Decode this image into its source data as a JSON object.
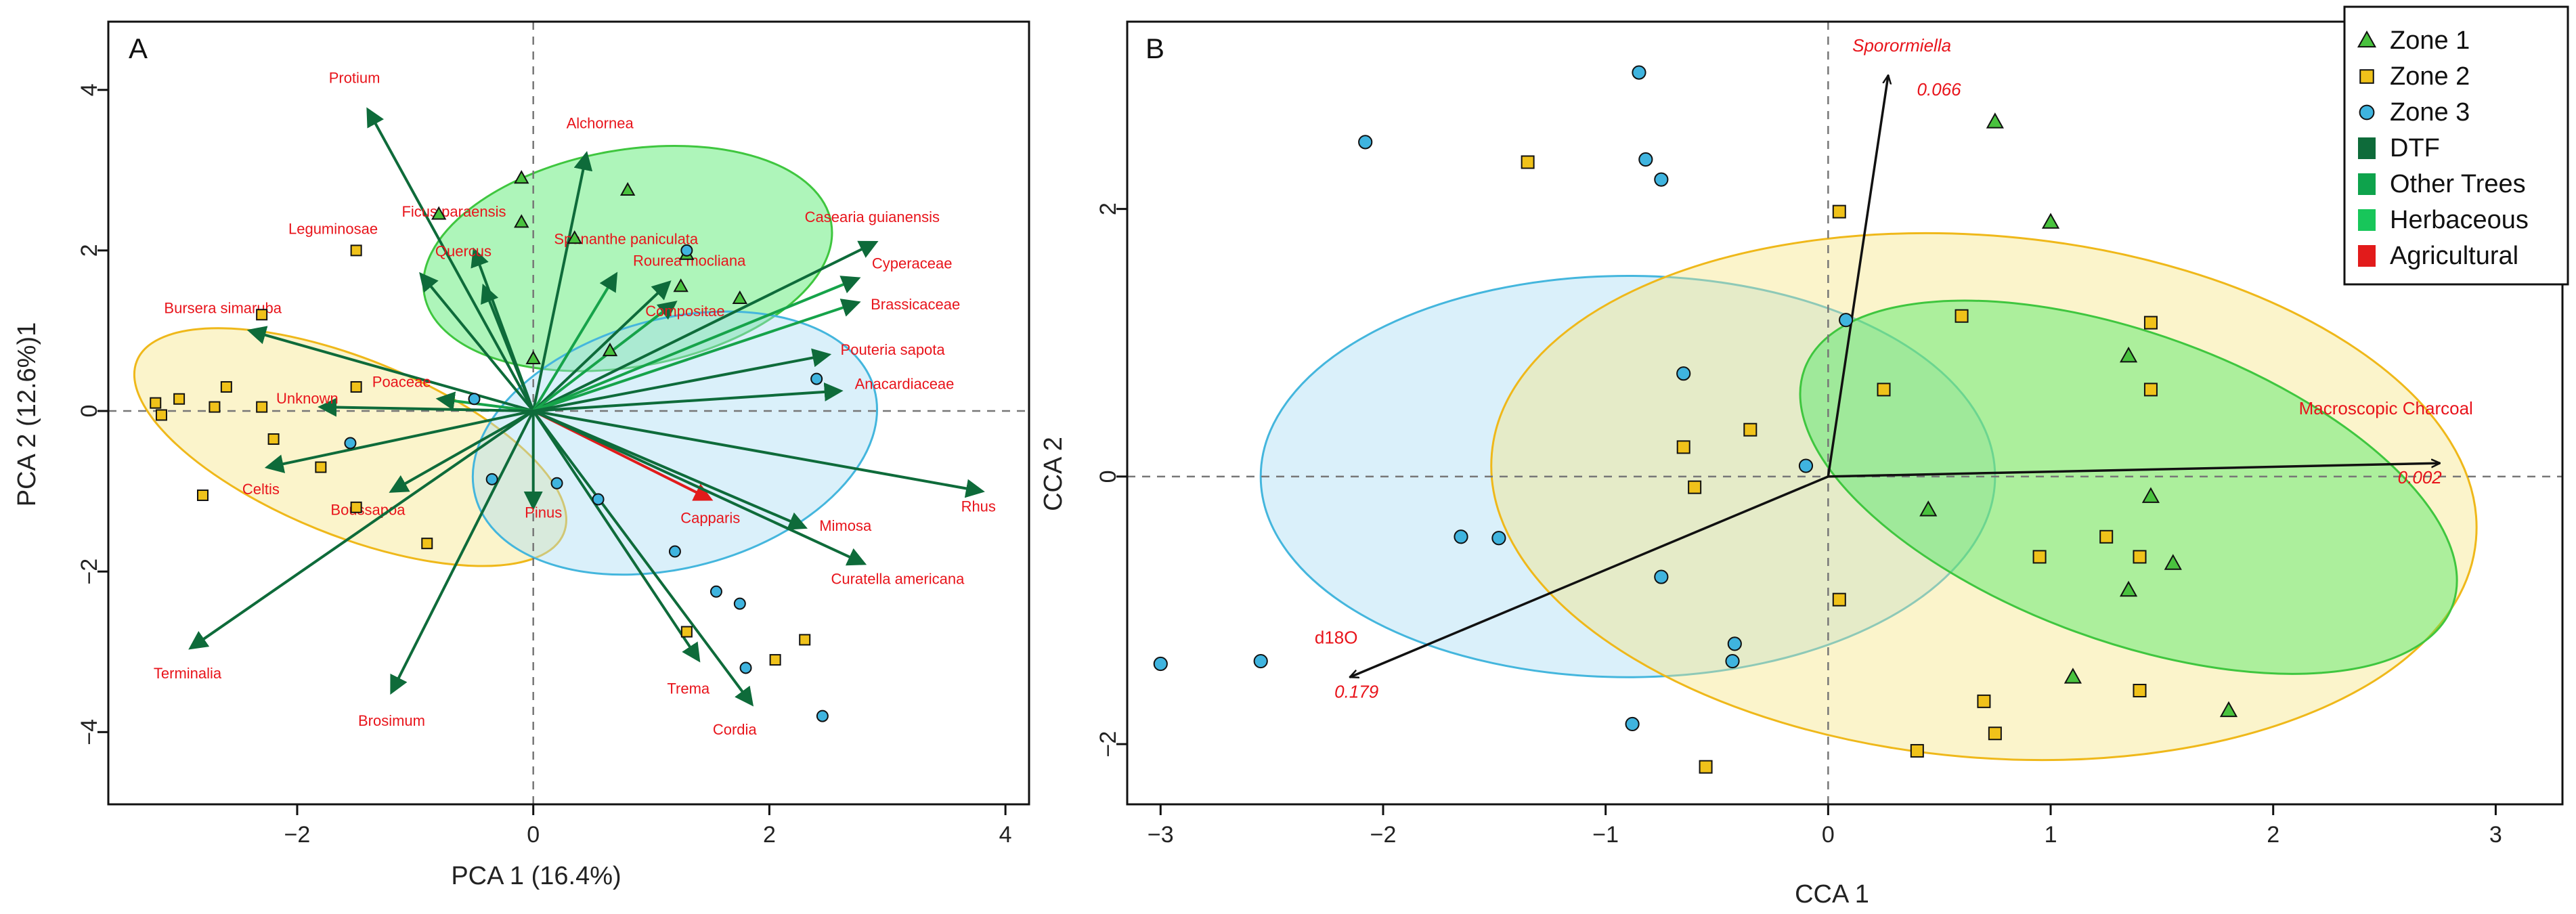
{
  "chart_data": [
    {
      "type": "scatter",
      "panel_label": "A",
      "xlabel": "PCA 1 (16.4%)",
      "ylabel": "PCA 2 (12.6%)1",
      "xlim": [
        -3.6,
        4.2
      ],
      "ylim": [
        -4.9,
        4.85
      ],
      "xticks": [
        -2,
        0,
        2,
        4
      ],
      "yticks": [
        -4,
        -2,
        0,
        2,
        4
      ],
      "reference_lines": {
        "x": 0,
        "y": 0
      },
      "colors": {
        "zone1": "#49c23e",
        "zone2": "#f0c21a",
        "zone3": "#3fb4df",
        "arrow_tree": "#0e6b3a",
        "arrow_agri": "#e21b1b",
        "label": "#e8141b"
      },
      "ellipses": [
        {
          "zone": "Zone 1",
          "center": [
            0.8,
            1.9
          ],
          "semi_axes": [
            1.75,
            1.35
          ],
          "angle": 10,
          "fill": "#3ee85a",
          "stroke": "#3fc63f"
        },
        {
          "zone": "Zone 2",
          "center": [
            -1.55,
            -0.45
          ],
          "semi_axes": [
            1.95,
            1.1
          ],
          "angle": -22,
          "fill": "#f6e482",
          "stroke": "#efb81a"
        },
        {
          "zone": "Zone 3",
          "center": [
            1.2,
            -0.4
          ],
          "semi_axes": [
            1.75,
            1.55
          ],
          "angle": 15,
          "fill": "#a8dcf3",
          "stroke": "#44b6dd"
        }
      ],
      "vectors": [
        {
          "name": "Protium",
          "x": -1.4,
          "y": 3.75,
          "group": "tree"
        },
        {
          "name": "Alchornea",
          "x": 0.45,
          "y": 3.2,
          "group": "tree"
        },
        {
          "name": "Casearia guianensis",
          "x": 2.9,
          "y": 2.1,
          "group": "tree"
        },
        {
          "name": "Leguminosae",
          "x": -0.95,
          "y": 1.7,
          "group": "tree"
        },
        {
          "name": "Ficus paraensis",
          "x": -0.5,
          "y": 2.0,
          "group": "tree"
        },
        {
          "name": "Quercus",
          "x": -0.42,
          "y": 1.55,
          "group": "tree"
        },
        {
          "name": "Spananthe paniculata",
          "x": 0.7,
          "y": 1.7,
          "group": "herb"
        },
        {
          "name": "Rourea mocliana",
          "x": 1.15,
          "y": 1.6,
          "group": "tree"
        },
        {
          "name": "Cyperaceae",
          "x": 2.75,
          "y": 1.65,
          "group": "herb"
        },
        {
          "name": "Brassicaceae",
          "x": 2.75,
          "y": 1.35,
          "group": "herb"
        },
        {
          "name": "Compositae",
          "x": 1.2,
          "y": 1.35,
          "group": "herb"
        },
        {
          "name": "Bursera simaruba",
          "x": -2.4,
          "y": 1.0,
          "group": "tree"
        },
        {
          "name": "Pouteria sapota",
          "x": 2.5,
          "y": 0.7,
          "group": "tree"
        },
        {
          "name": "Poaceae",
          "x": -0.8,
          "y": 0.15,
          "group": "herb"
        },
        {
          "name": "Unknown",
          "x": -1.8,
          "y": 0.05,
          "group": "tree"
        },
        {
          "name": "Anacardiaceae",
          "x": 2.6,
          "y": 0.25,
          "group": "tree"
        },
        {
          "name": "Celtis",
          "x": -2.25,
          "y": -0.7,
          "group": "tree"
        },
        {
          "name": "Boussapoa",
          "x": -1.2,
          "y": -1.0,
          "group": "tree"
        },
        {
          "name": "Pinus",
          "x": 0.0,
          "y": -1.2,
          "group": "tree"
        },
        {
          "name": "Capparis",
          "x": 1.5,
          "y": -1.1,
          "group": "agri"
        },
        {
          "name": "Mimosa",
          "x": 2.3,
          "y": -1.45,
          "group": "tree"
        },
        {
          "name": "Rhus",
          "x": 3.8,
          "y": -1.0,
          "group": "tree"
        },
        {
          "name": "Curatella americana",
          "x": 2.8,
          "y": -1.9,
          "group": "tree"
        },
        {
          "name": "Terminalia",
          "x": -2.9,
          "y": -2.95,
          "group": "tree"
        },
        {
          "name": "Brosimum",
          "x": -1.2,
          "y": -3.5,
          "group": "tree"
        },
        {
          "name": "Trema",
          "x": 1.4,
          "y": -3.1,
          "group": "tree"
        },
        {
          "name": "Cordia",
          "x": 1.85,
          "y": -3.65,
          "group": "tree"
        }
      ],
      "points": [
        {
          "zone": "Zone 1",
          "x": -0.8,
          "y": 2.45
        },
        {
          "zone": "Zone 1",
          "x": -0.1,
          "y": 2.9
        },
        {
          "zone": "Zone 1",
          "x": -0.1,
          "y": 2.35
        },
        {
          "zone": "Zone 1",
          "x": 0.35,
          "y": 2.15
        },
        {
          "zone": "Zone 1",
          "x": 0.8,
          "y": 2.75
        },
        {
          "zone": "Zone 1",
          "x": 1.3,
          "y": 1.95
        },
        {
          "zone": "Zone 1",
          "x": 1.75,
          "y": 1.4
        },
        {
          "zone": "Zone 1",
          "x": 0.0,
          "y": 0.65
        },
        {
          "zone": "Zone 1",
          "x": 0.65,
          "y": 0.75
        },
        {
          "zone": "Zone 1",
          "x": 1.25,
          "y": 1.55
        },
        {
          "zone": "Zone 2",
          "x": -1.5,
          "y": 2.0
        },
        {
          "zone": "Zone 2",
          "x": -2.3,
          "y": 1.2
        },
        {
          "zone": "Zone 2",
          "x": -3.2,
          "y": 0.1
        },
        {
          "zone": "Zone 2",
          "x": -3.15,
          "y": -0.05
        },
        {
          "zone": "Zone 2",
          "x": -3.0,
          "y": 0.15
        },
        {
          "zone": "Zone 2",
          "x": -2.7,
          "y": 0.05
        },
        {
          "zone": "Zone 2",
          "x": -2.6,
          "y": 0.3
        },
        {
          "zone": "Zone 2",
          "x": -2.3,
          "y": 0.05
        },
        {
          "zone": "Zone 2",
          "x": -2.2,
          "y": -0.35
        },
        {
          "zone": "Zone 2",
          "x": -1.8,
          "y": -0.7
        },
        {
          "zone": "Zone 2",
          "x": -1.5,
          "y": 0.3
        },
        {
          "zone": "Zone 2",
          "x": -1.5,
          "y": -1.2
        },
        {
          "zone": "Zone 2",
          "x": -2.8,
          "y": -1.05
        },
        {
          "zone": "Zone 2",
          "x": -0.9,
          "y": -1.65
        },
        {
          "zone": "Zone 2",
          "x": 1.3,
          "y": -2.75
        },
        {
          "zone": "Zone 2",
          "x": 2.05,
          "y": -3.1
        },
        {
          "zone": "Zone 2",
          "x": 2.3,
          "y": -2.85
        },
        {
          "zone": "Zone 3",
          "x": 1.3,
          "y": 2.0
        },
        {
          "zone": "Zone 3",
          "x": 2.4,
          "y": 0.4
        },
        {
          "zone": "Zone 3",
          "x": -1.55,
          "y": -0.4
        },
        {
          "zone": "Zone 3",
          "x": -0.5,
          "y": 0.15
        },
        {
          "zone": "Zone 3",
          "x": -0.35,
          "y": -0.85
        },
        {
          "zone": "Zone 3",
          "x": 0.2,
          "y": -0.9
        },
        {
          "zone": "Zone 3",
          "x": 0.55,
          "y": -1.1
        },
        {
          "zone": "Zone 3",
          "x": 1.2,
          "y": -1.75
        },
        {
          "zone": "Zone 3",
          "x": 1.55,
          "y": -2.25
        },
        {
          "zone": "Zone 3",
          "x": 1.75,
          "y": -2.4
        },
        {
          "zone": "Zone 3",
          "x": 1.8,
          "y": -3.2
        },
        {
          "zone": "Zone 3",
          "x": 2.45,
          "y": -3.8
        }
      ]
    },
    {
      "type": "scatter",
      "panel_label": "B",
      "xlabel": "CCA 1",
      "ylabel": "CCA 2",
      "xlim": [
        -3.15,
        3.3
      ],
      "ylim": [
        -2.45,
        3.4
      ],
      "xticks": [
        -3,
        -2,
        -1,
        0,
        1,
        2,
        3
      ],
      "yticks": [
        -2,
        0,
        2
      ],
      "reference_lines": {
        "x": 0,
        "y": 0
      },
      "ellipses": [
        {
          "zone": "Zone 3",
          "center": [
            -0.9,
            0.0
          ],
          "semi_axes": [
            1.65,
            1.5
          ],
          "angle": 0,
          "fill": "#a8dcf3",
          "stroke": "#44b6dd"
        },
        {
          "zone": "Zone 2",
          "center": [
            0.7,
            -0.15
          ],
          "semi_axes": [
            2.22,
            1.95
          ],
          "angle": -5,
          "fill": "#f6e482",
          "stroke": "#efb81a"
        },
        {
          "zone": "Zone 1",
          "center": [
            1.35,
            -0.08
          ],
          "semi_axes": [
            1.55,
            1.15
          ],
          "angle": -20,
          "fill": "#3ee85a",
          "stroke": "#3fc63f"
        }
      ],
      "vectors": [
        {
          "name": "Sporormiella",
          "value": "0.066",
          "x": 0.27,
          "y": 3.0
        },
        {
          "name": "Macroscopic Charcoal",
          "value": "0.002",
          "x": 2.75,
          "y": 0.1
        },
        {
          "name": "d18O",
          "value": "0.179",
          "x": -2.15,
          "y": -1.5
        }
      ],
      "points": [
        {
          "zone": "Zone 1",
          "x": 0.75,
          "y": 2.65
        },
        {
          "zone": "Zone 1",
          "x": 1.0,
          "y": 1.9
        },
        {
          "zone": "Zone 1",
          "x": 1.35,
          "y": 0.9
        },
        {
          "zone": "Zone 1",
          "x": 1.45,
          "y": -0.15
        },
        {
          "zone": "Zone 1",
          "x": 0.45,
          "y": -0.25
        },
        {
          "zone": "Zone 1",
          "x": 1.55,
          "y": -0.65
        },
        {
          "zone": "Zone 1",
          "x": 1.35,
          "y": -0.85
        },
        {
          "zone": "Zone 1",
          "x": 1.1,
          "y": -1.5
        },
        {
          "zone": "Zone 1",
          "x": 1.8,
          "y": -1.75
        },
        {
          "zone": "Zone 2",
          "x": -1.35,
          "y": 2.35
        },
        {
          "zone": "Zone 2",
          "x": 0.05,
          "y": 1.98
        },
        {
          "zone": "Zone 2",
          "x": 0.6,
          "y": 1.2
        },
        {
          "zone": "Zone 2",
          "x": 1.45,
          "y": 1.15
        },
        {
          "zone": "Zone 2",
          "x": 0.25,
          "y": 0.65
        },
        {
          "zone": "Zone 2",
          "x": 1.45,
          "y": 0.65
        },
        {
          "zone": "Zone 2",
          "x": -0.35,
          "y": 0.35
        },
        {
          "zone": "Zone 2",
          "x": -0.65,
          "y": 0.22
        },
        {
          "zone": "Zone 2",
          "x": -0.6,
          "y": -0.08
        },
        {
          "zone": "Zone 2",
          "x": 0.95,
          "y": -0.6
        },
        {
          "zone": "Zone 2",
          "x": 1.25,
          "y": -0.45
        },
        {
          "zone": "Zone 2",
          "x": 1.4,
          "y": -0.6
        },
        {
          "zone": "Zone 2",
          "x": 0.05,
          "y": -0.92
        },
        {
          "zone": "Zone 2",
          "x": 1.4,
          "y": -1.6
        },
        {
          "zone": "Zone 2",
          "x": 0.7,
          "y": -1.68
        },
        {
          "zone": "Zone 2",
          "x": 0.75,
          "y": -1.92
        },
        {
          "zone": "Zone 2",
          "x": 0.4,
          "y": -2.05
        },
        {
          "zone": "Zone 2",
          "x": -0.55,
          "y": -2.17
        },
        {
          "zone": "Zone 3",
          "x": -0.85,
          "y": 3.02
        },
        {
          "zone": "Zone 3",
          "x": -2.08,
          "y": 2.5
        },
        {
          "zone": "Zone 3",
          "x": -0.82,
          "y": 2.37
        },
        {
          "zone": "Zone 3",
          "x": -0.75,
          "y": 2.22
        },
        {
          "zone": "Zone 3",
          "x": 0.08,
          "y": 1.17
        },
        {
          "zone": "Zone 3",
          "x": -0.65,
          "y": 0.77
        },
        {
          "zone": "Zone 3",
          "x": -0.1,
          "y": 0.08
        },
        {
          "zone": "Zone 3",
          "x": -1.65,
          "y": -0.45
        },
        {
          "zone": "Zone 3",
          "x": -1.48,
          "y": -0.46
        },
        {
          "zone": "Zone 3",
          "x": -0.75,
          "y": -0.75
        },
        {
          "zone": "Zone 3",
          "x": -0.42,
          "y": -1.25
        },
        {
          "zone": "Zone 3",
          "x": -0.43,
          "y": -1.38
        },
        {
          "zone": "Zone 3",
          "x": -0.88,
          "y": -1.85
        },
        {
          "zone": "Zone 3",
          "x": -3.0,
          "y": -1.4
        },
        {
          "zone": "Zone 3",
          "x": -2.55,
          "y": -1.38
        }
      ],
      "legend": {
        "position": "top-right",
        "entries": [
          {
            "label": "Zone 1",
            "marker": "triangle",
            "color": "#49c23e"
          },
          {
            "label": "Zone 2",
            "marker": "square",
            "color": "#f0c21a"
          },
          {
            "label": "Zone 3",
            "marker": "circle",
            "color": "#3fb4df"
          },
          {
            "label": "DTF",
            "marker": "box",
            "color": "#0e6b3a"
          },
          {
            "label": "Other Trees",
            "marker": "box",
            "color": "#0ea34c"
          },
          {
            "label": "Herbaceous",
            "marker": "box",
            "color": "#18c65a"
          },
          {
            "label": "Agricultural",
            "marker": "box",
            "color": "#e21b1b"
          }
        ]
      }
    }
  ]
}
